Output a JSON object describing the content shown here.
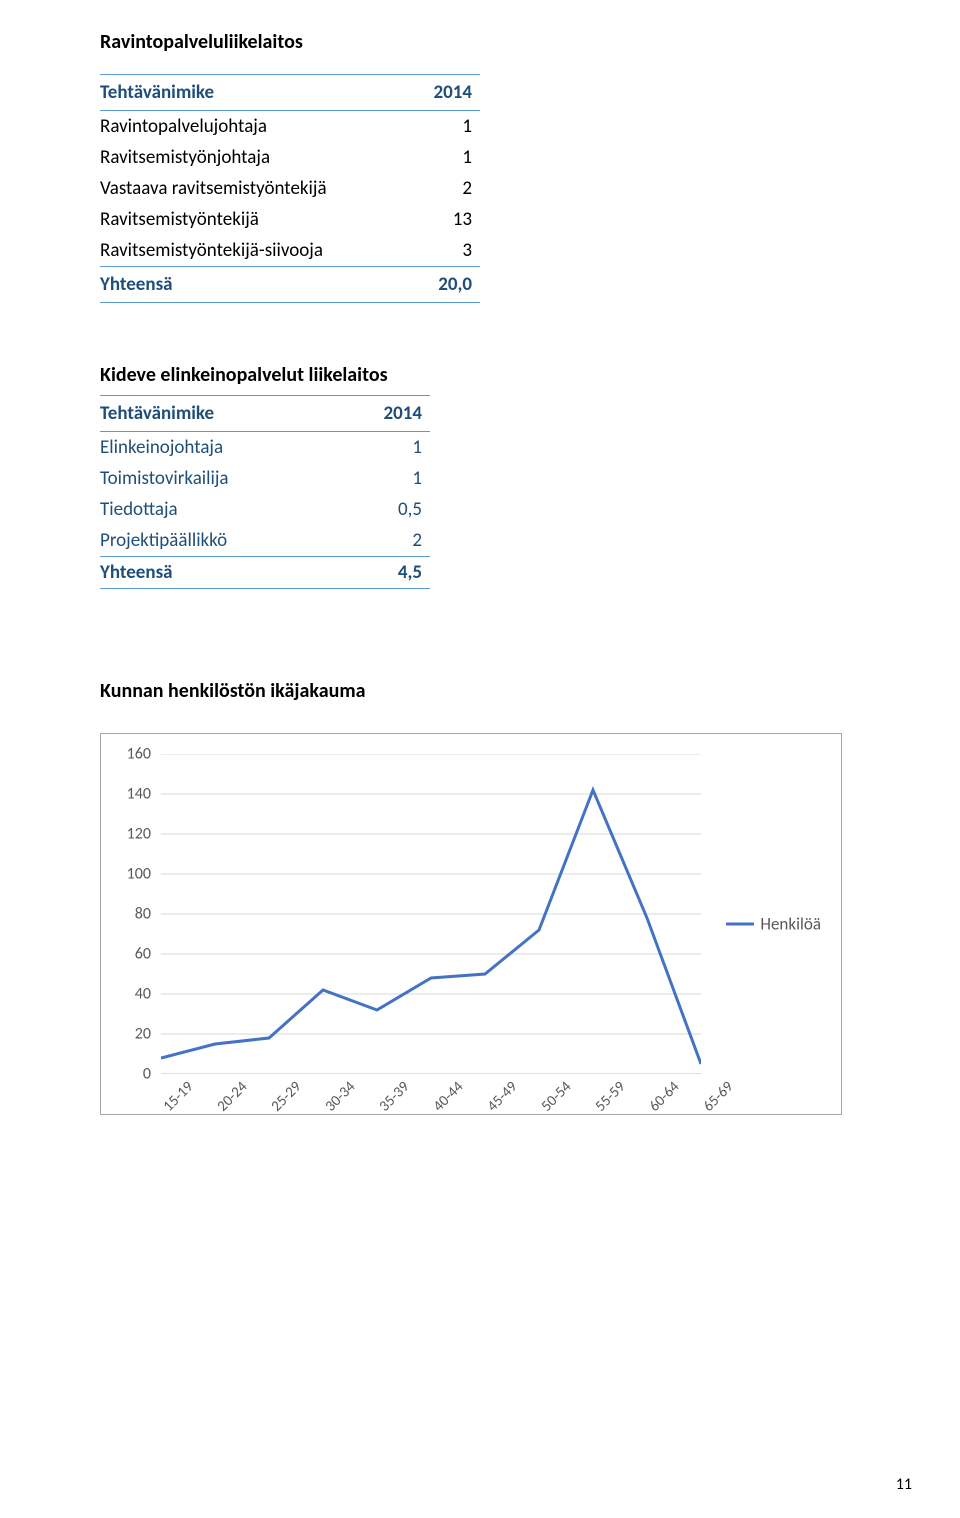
{
  "section1": {
    "title": "Ravintopalveluliikelaitos",
    "header_label": "Tehtävänimike",
    "header_year": "2014",
    "rows": [
      {
        "label": "Ravintopalvelujohtaja",
        "value": "1"
      },
      {
        "label": "Ravitsemistyönjohtaja",
        "value": "1"
      },
      {
        "label": "Vastaava ravitsemistyöntekijä",
        "value": "2"
      },
      {
        "label": "Ravitsemistyöntekijä",
        "value": "13"
      },
      {
        "label": "Ravitsemistyöntekijä-siivooja",
        "value": "3"
      }
    ],
    "total_label": "Yhteensä",
    "total_value": "20,0"
  },
  "section2": {
    "title": "Kideve elinkeinopalvelut liikelaitos",
    "header_label": "Tehtävänimike",
    "header_year": "2014",
    "rows": [
      {
        "label": "Elinkeinojohtaja",
        "value": "1"
      },
      {
        "label": "Toimistovirkailija",
        "value": "1"
      },
      {
        "label": "Tiedottaja",
        "value": "0,5"
      },
      {
        "label": "Projektipäällikkö",
        "value": "2"
      }
    ],
    "total_label": "Yhteensä",
    "total_value": "4,5"
  },
  "chart": {
    "title": "Kunnan henkilöstön ikäjakauma",
    "type": "line",
    "categories": [
      "15-19",
      "20-24",
      "25-29",
      "30-34",
      "35-39",
      "40-44",
      "45-49",
      "50-54",
      "55-59",
      "60-64",
      "65-69"
    ],
    "values": [
      8,
      15,
      18,
      42,
      32,
      48,
      50,
      72,
      142,
      78,
      5
    ],
    "ylim": [
      0,
      160
    ],
    "ytick_step": 20,
    "yticks": [
      "0",
      "20",
      "40",
      "60",
      "80",
      "100",
      "120",
      "140",
      "160"
    ],
    "line_color": "#4472c4",
    "line_width": 3,
    "grid_color": "#d9d9d9",
    "axis_color": "#bfbfbf",
    "tick_font_color": "#595959",
    "tick_fontsize": 16,
    "legend_label": "Henkilöä",
    "background_color": "#ffffff"
  },
  "page_number": "11"
}
